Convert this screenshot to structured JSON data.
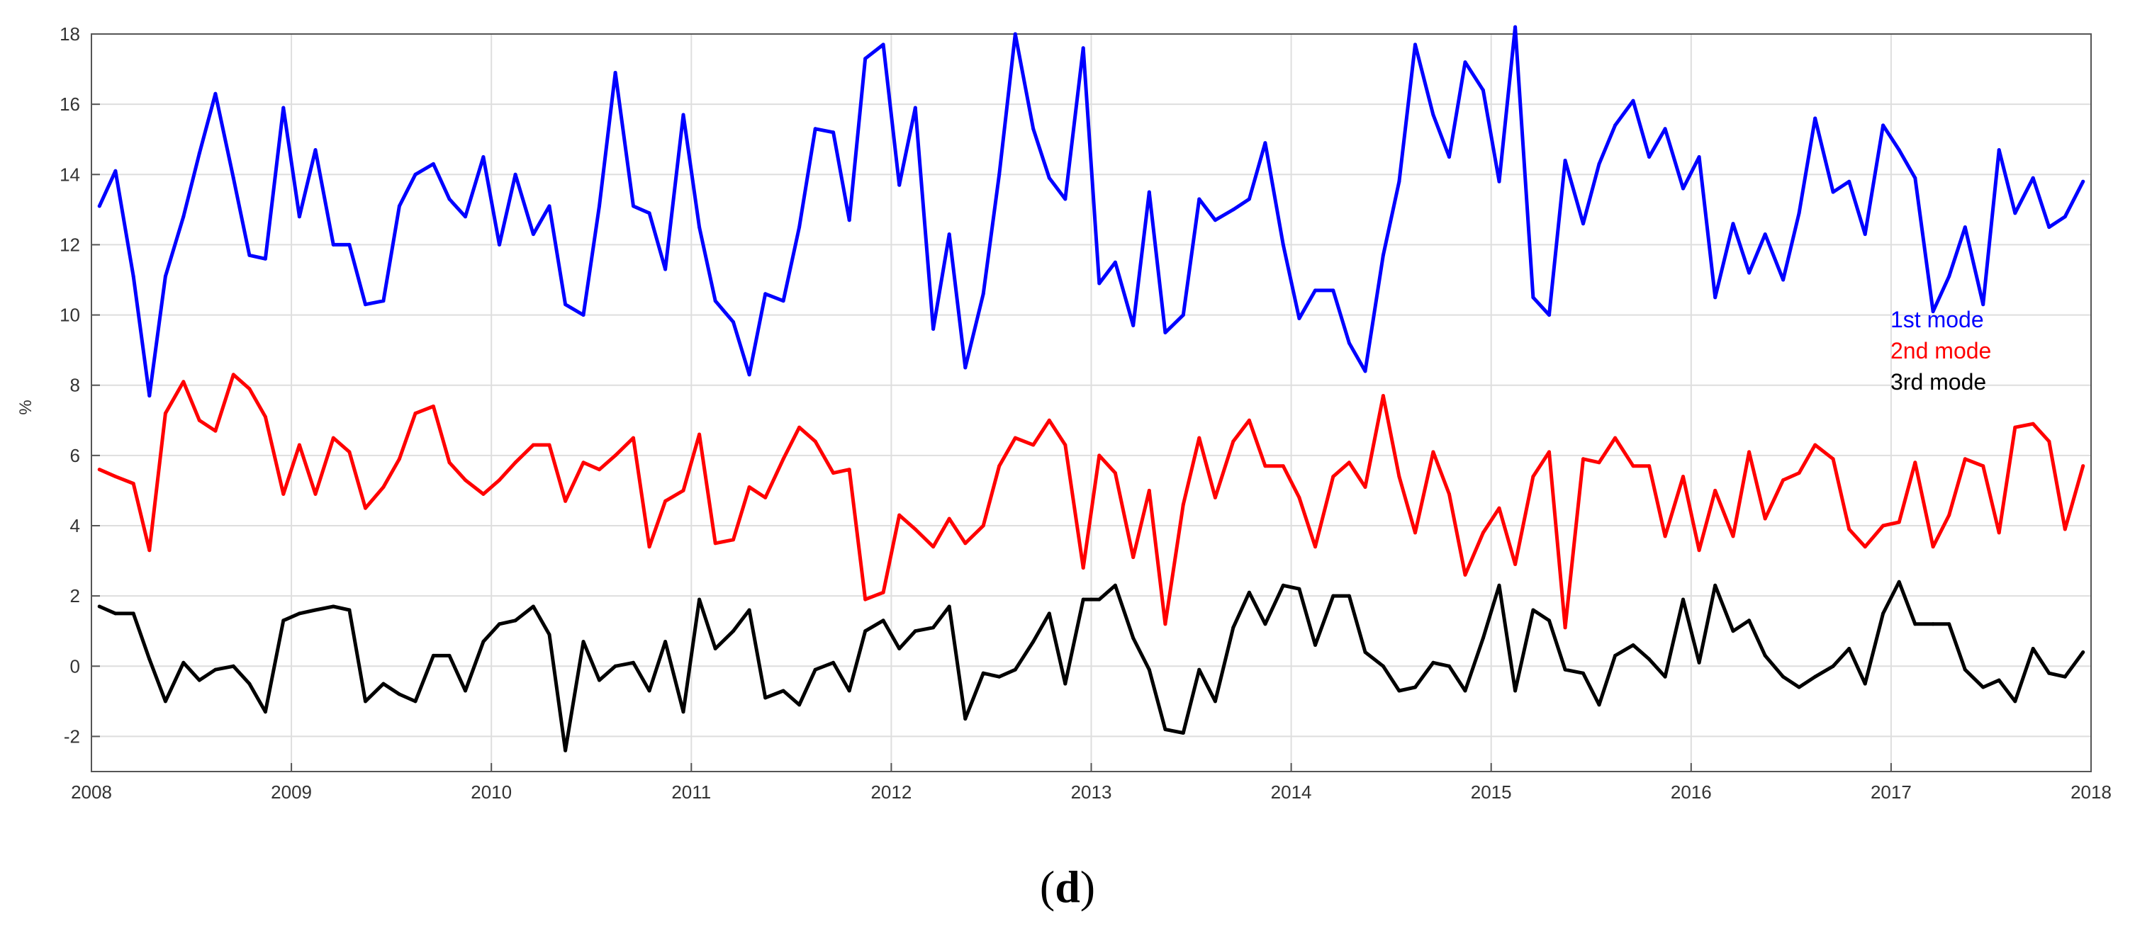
{
  "chart_data": {
    "type": "line",
    "ylabel": "%",
    "ylim": [
      -3,
      18
    ],
    "xlim": [
      2008.0,
      2018.0
    ],
    "yticks": [
      -2,
      0,
      2,
      4,
      6,
      8,
      10,
      12,
      14,
      16,
      18
    ],
    "xticks": [
      2008,
      2009,
      2010,
      2011,
      2012,
      2013,
      2014,
      2015,
      2016,
      2017,
      2018
    ],
    "grid": true,
    "legend_placement": "right",
    "x": [
      2008.04,
      2008.12,
      2008.21,
      2008.29,
      2008.37,
      2008.46,
      2008.54,
      2008.62,
      2008.71,
      2008.79,
      2008.87,
      2008.96,
      2009.04,
      2009.12,
      2009.21,
      2009.29,
      2009.37,
      2009.46,
      2009.54,
      2009.62,
      2009.71,
      2009.79,
      2009.87,
      2009.96,
      2010.04,
      2010.12,
      2010.21,
      2010.29,
      2010.37,
      2010.46,
      2010.54,
      2010.62,
      2010.71,
      2010.79,
      2010.87,
      2010.96,
      2011.04,
      2011.12,
      2011.21,
      2011.29,
      2011.37,
      2011.46,
      2011.54,
      2011.62,
      2011.71,
      2011.79,
      2011.87,
      2011.96,
      2012.04,
      2012.12,
      2012.21,
      2012.29,
      2012.37,
      2012.46,
      2012.54,
      2012.62,
      2012.71,
      2012.79,
      2012.87,
      2012.96,
      2013.04,
      2013.12,
      2013.21,
      2013.29,
      2013.37,
      2013.46,
      2013.54,
      2013.62,
      2013.71,
      2013.79,
      2013.87,
      2013.96,
      2014.04,
      2014.12,
      2014.21,
      2014.29,
      2014.37,
      2014.46,
      2014.54,
      2014.62,
      2014.71,
      2014.79,
      2014.87,
      2014.96,
      2015.04,
      2015.12,
      2015.21,
      2015.29,
      2015.37,
      2015.46,
      2015.54,
      2015.62,
      2015.71,
      2015.79,
      2015.87,
      2015.96,
      2016.04,
      2016.12,
      2016.21,
      2016.29,
      2016.37,
      2016.46,
      2016.54,
      2016.62,
      2016.71,
      2016.79,
      2016.87,
      2016.96,
      2017.04,
      2017.12,
      2017.21,
      2017.29,
      2017.37,
      2017.46,
      2017.54,
      2017.62,
      2017.71,
      2017.79,
      2017.87,
      2017.96
    ],
    "series": [
      {
        "name": "1st mode",
        "color": "#0000ff",
        "values": [
          13.1,
          14.1,
          11.1,
          7.7,
          11.1,
          12.8,
          14.6,
          16.3,
          13.9,
          11.7,
          11.6,
          15.9,
          12.8,
          14.7,
          12.0,
          12.0,
          10.3,
          10.4,
          13.1,
          14.0,
          14.3,
          13.3,
          12.8,
          14.5,
          12.0,
          14.0,
          12.3,
          13.1,
          10.3,
          10.0,
          13.1,
          16.9,
          13.1,
          12.9,
          11.3,
          15.7,
          12.5,
          10.4,
          9.8,
          8.3,
          10.6,
          10.4,
          12.5,
          15.3,
          15.2,
          12.7,
          17.3,
          17.7,
          13.7,
          15.9,
          9.6,
          12.3,
          8.5,
          10.6,
          14.0,
          18.0,
          15.3,
          13.9,
          13.3,
          17.6,
          10.9,
          11.5,
          9.7,
          13.5,
          9.5,
          10.0,
          13.3,
          12.7,
          13.0,
          13.3,
          14.9,
          12.0,
          9.9,
          10.7,
          10.7,
          9.2,
          8.4,
          11.7,
          13.8,
          17.7,
          15.7,
          14.5,
          17.2,
          16.4,
          13.8,
          18.2,
          10.5,
          10.0,
          14.4,
          12.6,
          14.3,
          15.4,
          16.1,
          14.5,
          15.3,
          13.6,
          14.5,
          10.5,
          12.6,
          11.2,
          12.3,
          11.0,
          12.9,
          15.6,
          13.5,
          13.8,
          12.3,
          15.4,
          14.7,
          13.9,
          10.1,
          11.1,
          12.5,
          10.3,
          14.7,
          12.9,
          13.9,
          12.5,
          12.8,
          13.8
        ]
      },
      {
        "name": "2nd mode",
        "color": "#ff0000",
        "values": [
          5.6,
          5.4,
          5.2,
          3.3,
          7.2,
          8.1,
          7.0,
          6.7,
          8.3,
          7.9,
          7.1,
          4.9,
          6.3,
          4.9,
          6.5,
          6.1,
          4.5,
          5.1,
          5.9,
          7.2,
          7.4,
          5.8,
          5.3,
          4.9,
          5.3,
          5.8,
          6.3,
          6.3,
          4.7,
          5.8,
          5.6,
          6.0,
          6.5,
          3.4,
          4.7,
          5.0,
          6.6,
          3.5,
          3.6,
          5.1,
          4.8,
          5.9,
          6.8,
          6.4,
          5.5,
          5.6,
          1.9,
          2.1,
          4.3,
          3.9,
          3.4,
          4.2,
          3.5,
          4.0,
          5.7,
          6.5,
          6.3,
          7.0,
          6.3,
          2.8,
          6.0,
          5.5,
          3.1,
          5.0,
          1.2,
          4.6,
          6.5,
          4.8,
          6.4,
          7.0,
          5.7,
          5.7,
          4.8,
          3.4,
          5.4,
          5.8,
          5.1,
          7.7,
          5.4,
          3.8,
          6.1,
          4.9,
          2.6,
          3.8,
          4.5,
          2.9,
          5.4,
          6.1,
          1.1,
          5.9,
          5.8,
          6.5,
          5.7,
          5.7,
          3.7,
          5.4,
          3.3,
          5.0,
          3.7,
          6.1,
          4.2,
          5.3,
          5.5,
          6.3,
          5.9,
          3.9,
          3.4,
          4.0,
          4.1,
          5.8,
          3.4,
          4.3,
          5.9,
          5.7,
          3.8,
          6.8,
          6.9,
          6.4,
          3.9,
          5.7
        ]
      },
      {
        "name": "3rd mode",
        "color": "#000000",
        "values": [
          1.7,
          1.5,
          1.5,
          0.2,
          -1.0,
          0.1,
          -0.4,
          -0.1,
          0.0,
          -0.5,
          -1.3,
          1.3,
          1.5,
          1.6,
          1.7,
          1.6,
          -1.0,
          -0.5,
          -0.8,
          -1.0,
          0.3,
          0.3,
          -0.7,
          0.7,
          1.2,
          1.3,
          1.7,
          0.9,
          -2.4,
          0.7,
          -0.4,
          0.0,
          0.1,
          -0.7,
          0.7,
          -1.3,
          1.9,
          0.5,
          1.0,
          1.6,
          -0.9,
          -0.7,
          -1.1,
          -0.1,
          0.1,
          -0.7,
          1.0,
          1.3,
          0.5,
          1.0,
          1.1,
          1.7,
          -1.5,
          -0.2,
          -0.3,
          -0.1,
          0.7,
          1.5,
          -0.5,
          1.9,
          1.9,
          2.3,
          0.8,
          -0.1,
          -1.8,
          -1.9,
          -0.1,
          -1.0,
          1.1,
          2.1,
          1.2,
          2.3,
          2.2,
          0.6,
          2.0,
          2.0,
          0.4,
          0.0,
          -0.7,
          -0.6,
          0.1,
          0.0,
          -0.7,
          0.8,
          2.3,
          -0.7,
          1.6,
          1.3,
          -0.1,
          -0.2,
          -1.1,
          0.3,
          0.6,
          0.2,
          -0.3,
          1.9,
          0.1,
          2.3,
          1.0,
          1.3,
          0.3,
          -0.3,
          -0.6,
          -0.3,
          0.0,
          0.5,
          -0.5,
          1.5,
          2.4,
          1.2,
          1.2,
          1.2,
          -0.1,
          -0.6,
          -0.4,
          -1.0,
          0.5,
          -0.2,
          -0.3,
          0.4
        ]
      }
    ]
  },
  "panel_label": {
    "open": "(",
    "letter": "d",
    "close": ")"
  }
}
